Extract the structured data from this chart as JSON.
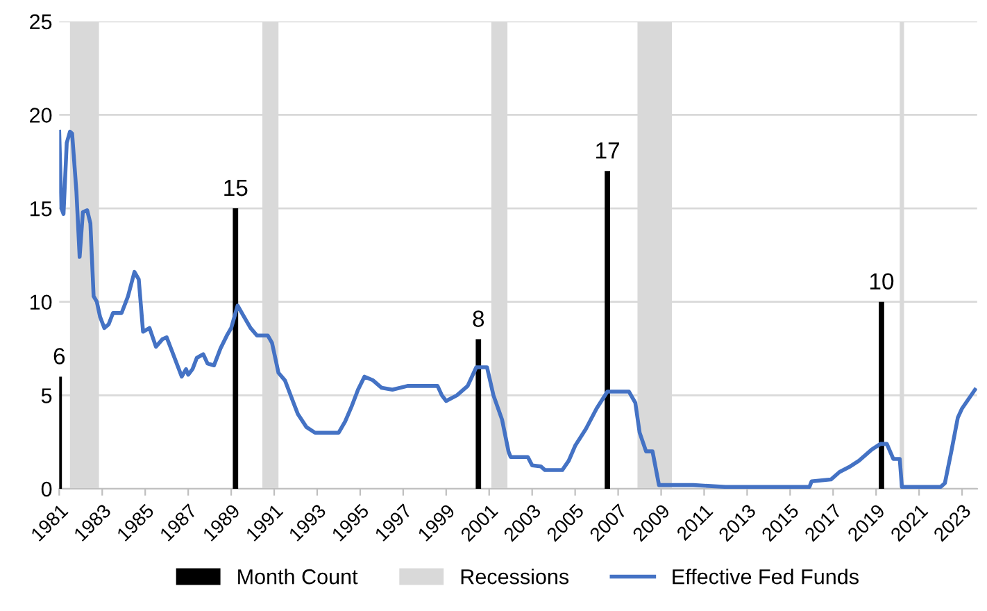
{
  "chart_data": {
    "type": "bar",
    "xlim": [
      1981,
      2023.7
    ],
    "xticks": [
      1981,
      1983,
      1985,
      1987,
      1989,
      1991,
      1993,
      1995,
      1997,
      1999,
      2001,
      2003,
      2005,
      2007,
      2009,
      2011,
      2013,
      2015,
      2017,
      2019,
      2021,
      2023
    ],
    "ylim": [
      0,
      25
    ],
    "yticks": [
      0,
      5,
      10,
      15,
      20,
      25
    ],
    "grid": "y",
    "legend": "bottom",
    "bands": [
      {
        "axis": "x",
        "from": 1981.5,
        "to": 1982.85,
        "label": "Recessions",
        "color": "#d9d9d9"
      },
      {
        "axis": "x",
        "from": 1990.45,
        "to": 1991.2,
        "color": "#d9d9d9"
      },
      {
        "axis": "x",
        "from": 2001.1,
        "to": 2001.85,
        "color": "#d9d9d9"
      },
      {
        "axis": "x",
        "from": 2007.9,
        "to": 2009.5,
        "color": "#d9d9d9"
      },
      {
        "axis": "x",
        "from": 2020.1,
        "to": 2020.3,
        "color": "#d9d9d9"
      }
    ],
    "series": [
      {
        "name": "Month Count",
        "color": "#000000",
        "x": [
          1981.0,
          1989.2,
          2000.5,
          2006.5,
          2019.25
        ],
        "values": [
          6,
          15,
          8,
          17,
          10
        ],
        "value_labels": [
          "6",
          "15",
          "8",
          "17",
          "10"
        ]
      },
      {
        "name": "Effective Fed Funds",
        "type": "line",
        "color": "#4472c4",
        "x": [
          1981.0,
          1981.1,
          1981.2,
          1981.35,
          1981.5,
          1981.6,
          1981.8,
          1981.95,
          1982.1,
          1982.3,
          1982.45,
          1982.6,
          1982.75,
          1982.9,
          1983.1,
          1983.3,
          1983.5,
          1983.9,
          1984.2,
          1984.5,
          1984.7,
          1984.9,
          1985.2,
          1985.5,
          1985.8,
          1986.0,
          1986.4,
          1986.7,
          1986.9,
          1987.0,
          1987.2,
          1987.4,
          1987.7,
          1987.9,
          1988.2,
          1988.5,
          1988.8,
          1989.0,
          1989.3,
          1989.6,
          1989.9,
          1990.2,
          1990.7,
          1990.9,
          1991.2,
          1991.5,
          1991.9,
          1992.1,
          1992.5,
          1992.9,
          1993.5,
          1994.0,
          1994.3,
          1994.6,
          1994.9,
          1995.2,
          1995.6,
          1996.0,
          1996.5,
          1997.2,
          1998.0,
          1998.6,
          1998.8,
          1999.0,
          1999.5,
          2000.0,
          2000.4,
          2000.9,
          2001.2,
          2001.6,
          2001.9,
          2002.0,
          2002.8,
          2003.0,
          2003.4,
          2003.6,
          2004.4,
          2004.7,
          2005.0,
          2005.5,
          2006.0,
          2006.5,
          2007.5,
          2007.8,
          2008.0,
          2008.3,
          2008.6,
          2008.9,
          2009.5,
          2010.5,
          2012.0,
          2014.0,
          2015.9,
          2016.0,
          2016.9,
          2017.3,
          2017.8,
          2018.2,
          2018.8,
          2019.2,
          2019.5,
          2019.8,
          2020.1,
          2020.2,
          2022.0,
          2022.2,
          2022.5,
          2022.8,
          2023.0,
          2023.3,
          2023.6
        ],
        "values": [
          19.1,
          15.0,
          14.7,
          18.5,
          19.1,
          19.0,
          15.9,
          12.4,
          14.8,
          14.9,
          14.2,
          10.3,
          10.0,
          9.2,
          8.6,
          8.8,
          9.4,
          9.4,
          10.3,
          11.6,
          11.2,
          8.4,
          8.6,
          7.6,
          8.0,
          8.1,
          6.9,
          6.0,
          6.4,
          6.1,
          6.4,
          7.0,
          7.2,
          6.7,
          6.6,
          7.5,
          8.2,
          8.6,
          9.8,
          9.2,
          8.6,
          8.2,
          8.2,
          7.8,
          6.2,
          5.8,
          4.6,
          4.0,
          3.3,
          3.0,
          3.0,
          3.0,
          3.6,
          4.4,
          5.3,
          6.0,
          5.8,
          5.4,
          5.3,
          5.5,
          5.5,
          5.5,
          5.0,
          4.7,
          5.0,
          5.5,
          6.5,
          6.5,
          5.0,
          3.7,
          2.0,
          1.7,
          1.7,
          1.25,
          1.2,
          1.0,
          1.0,
          1.5,
          2.3,
          3.2,
          4.3,
          5.2,
          5.2,
          4.6,
          3.0,
          2.0,
          2.0,
          0.2,
          0.2,
          0.2,
          0.1,
          0.1,
          0.1,
          0.4,
          0.5,
          0.9,
          1.2,
          1.5,
          2.1,
          2.4,
          2.4,
          1.6,
          1.6,
          0.1,
          0.1,
          0.3,
          2.0,
          3.8,
          4.3,
          4.8,
          5.3
        ]
      }
    ]
  }
}
